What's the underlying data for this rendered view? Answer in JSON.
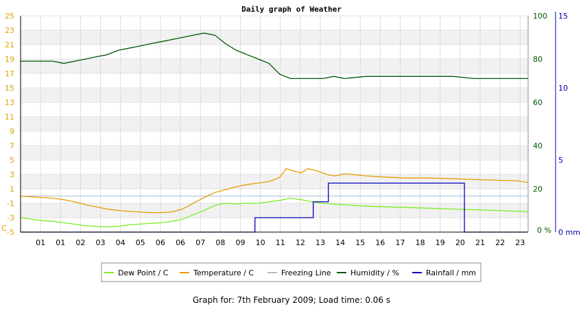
{
  "chart_data": {
    "type": "line",
    "title": "Daily graph of Weather",
    "left_axis": {
      "unit": "C",
      "range": [
        -5,
        25
      ],
      "ticks": [
        "25",
        "23",
        "21",
        "19",
        "17",
        "15",
        "13",
        "11",
        "9",
        "7",
        "5",
        "3",
        "1",
        "-1",
        "-3",
        "-5"
      ],
      "color": "#e0a000"
    },
    "right_axis_humidity": {
      "unit": "%",
      "range": [
        0,
        100
      ],
      "ticks": [
        "100",
        "80",
        "60",
        "40",
        "20"
      ],
      "zero_label": "0",
      "color": "#005500"
    },
    "right_axis_rainfall": {
      "unit": "mm",
      "range": [
        0,
        15
      ],
      "ticks": [
        "15",
        "10",
        "5",
        "0"
      ],
      "color": "#0000aa"
    },
    "x_tick_labels": [
      "01",
      "01",
      "02",
      "03",
      "04",
      "05",
      "06",
      "06",
      "07",
      "08",
      "09",
      "10",
      "11",
      "12",
      "13",
      "14",
      "15",
      "16",
      "17",
      "18",
      "19",
      "20",
      "21",
      "22",
      "23"
    ],
    "grid": true,
    "legend_position": "bottom",
    "series": [
      {
        "name": "Dew Point / C",
        "color": "#77ee22",
        "axis": "left",
        "x": [
          0,
          0.5,
          1,
          1.5,
          2,
          2.5,
          3,
          3.5,
          4,
          4.5,
          5,
          5.5,
          6,
          6.5,
          7,
          7.5,
          8,
          8.5,
          9,
          9.5,
          10,
          10.5,
          11,
          11.5,
          12,
          12.5,
          13,
          13.5,
          14,
          14.5,
          15,
          16,
          17,
          18,
          19,
          20,
          21,
          22,
          23,
          23.5
        ],
        "y": [
          -3.0,
          -3.2,
          -3.4,
          -3.5,
          -3.7,
          -3.9,
          -4.1,
          -4.2,
          -4.3,
          -4.2,
          -4.0,
          -3.9,
          -3.8,
          -3.7,
          -3.5,
          -3.2,
          -2.6,
          -2.0,
          -1.3,
          -1.0,
          -1.1,
          -1.0,
          -1.0,
          -0.8,
          -0.6,
          -0.3,
          -0.5,
          -0.8,
          -1.0,
          -1.1,
          -1.2,
          -1.4,
          -1.5,
          -1.6,
          -1.7,
          -1.8,
          -1.9,
          -2.0,
          -2.1,
          -2.2
        ]
      },
      {
        "name": "Temperature / C",
        "color": "#e89a00",
        "axis": "left",
        "x": [
          0,
          0.5,
          1,
          1.5,
          2,
          2.5,
          3,
          3.5,
          4,
          4.5,
          5,
          5.5,
          6,
          6.5,
          7,
          7.5,
          8,
          8.5,
          9,
          9.5,
          10,
          10.5,
          11,
          11.5,
          12,
          12.3,
          12.6,
          13,
          13.3,
          13.6,
          14,
          14.3,
          14.6,
          15,
          16,
          17,
          18,
          19,
          20,
          21,
          22,
          23,
          23.5
        ],
        "y": [
          0.0,
          -0.1,
          -0.2,
          -0.3,
          -0.5,
          -0.8,
          -1.2,
          -1.5,
          -1.8,
          -2.0,
          -2.1,
          -2.2,
          -2.3,
          -2.3,
          -2.2,
          -1.8,
          -1.0,
          -0.2,
          0.5,
          0.9,
          1.3,
          1.6,
          1.8,
          2.0,
          2.6,
          3.8,
          3.5,
          3.2,
          3.8,
          3.6,
          3.2,
          2.9,
          2.8,
          3.1,
          2.8,
          2.6,
          2.5,
          2.5,
          2.4,
          2.3,
          2.2,
          2.1,
          1.9
        ]
      },
      {
        "name": "Freezing Line",
        "color": "#a9bfd6",
        "axis": "left",
        "x": [
          0,
          23.5
        ],
        "y": [
          0,
          0
        ]
      },
      {
        "name": "Humidity / %",
        "color": "#005500",
        "axis": "humidity",
        "x": [
          0,
          0.5,
          1,
          1.5,
          2,
          2.5,
          3,
          3.5,
          4,
          4.5,
          5,
          5.5,
          6,
          6.5,
          7,
          7.5,
          8,
          8.5,
          9,
          9.5,
          10,
          10.5,
          11,
          11.5,
          12,
          12.5,
          13,
          13.5,
          14,
          14.5,
          15,
          16,
          17,
          18,
          19,
          20,
          21,
          22,
          23,
          23.5
        ],
        "y": [
          79,
          79,
          79,
          79,
          78,
          79,
          80,
          81,
          82,
          84,
          85,
          86,
          87,
          88,
          89,
          90,
          91,
          92,
          91,
          87,
          84,
          82,
          80,
          78,
          73,
          71,
          71,
          71,
          71,
          72,
          71,
          72,
          72,
          72,
          72,
          72,
          71,
          71,
          71,
          71
        ]
      },
      {
        "name": "Rainfall / mm",
        "color": "#0000bb",
        "axis": "rainfall",
        "step": true,
        "x": [
          0,
          10.85,
          13.55,
          14.25,
          20.55,
          23.5
        ],
        "y": [
          0,
          1.0,
          2.1,
          3.4,
          0,
          0
        ]
      }
    ]
  },
  "footer": {
    "text": "Graph for: 7th February 2009; Load time: 0.06 s"
  }
}
